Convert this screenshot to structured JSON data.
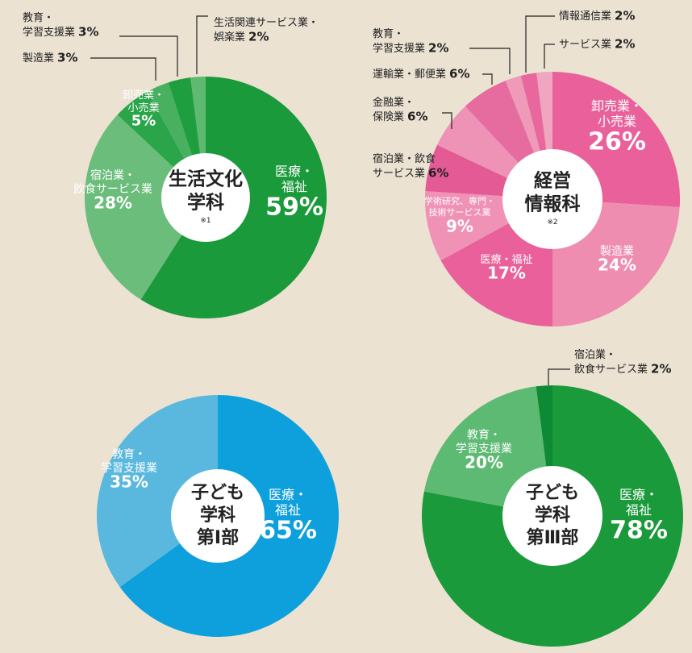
{
  "chart_data": [
    {
      "type": "pie",
      "title": "生活文化\n学科",
      "note": "※1",
      "categories": [
        "医療・\n福祉",
        "宿泊業・\n飲食サービス業",
        "卸売業・\n小売業",
        "製造業",
        "教育・\n学習支援業",
        "生活関連サービス業・\n娯楽業"
      ],
      "values": [
        59,
        28,
        5,
        3,
        3,
        2
      ],
      "value_labels": [
        "59%",
        "28%",
        "5%",
        "3%",
        "3%",
        "2%"
      ],
      "colors": [
        "#1a9a3a",
        "#6abd7a",
        "#2aa54a",
        "#48b05f",
        "#1f9e3f",
        "#5dba70"
      ]
    },
    {
      "type": "pie",
      "title": "経営\n情報科",
      "note": "※2",
      "categories": [
        "卸売業・\n小売業",
        "製造業",
        "医療・福祉",
        "学術研究、専門・\n技術サービス業",
        "宿泊業・飲食\nサービス業",
        "金融業・\n保険業",
        "運輸業・郵便業",
        "教育・\n学習支援業",
        "情報通信業",
        "サービス業"
      ],
      "values": [
        26,
        24,
        17,
        9,
        6,
        6,
        6,
        2,
        2,
        2
      ],
      "value_labels": [
        "26%",
        "24%",
        "17%",
        "9%",
        "6%",
        "6%",
        "6%",
        "2%",
        "2%",
        "2%"
      ],
      "colors": [
        "#e9609a",
        "#ee8db0",
        "#e9609a",
        "#ef92b5",
        "#e45a95",
        "#ee93b5",
        "#e66ca0",
        "#ef9ab9",
        "#e8689d",
        "#f0a5c0"
      ]
    },
    {
      "type": "pie",
      "title": "子ども\n学科\n第Ⅰ部",
      "categories": [
        "医療・\n福祉",
        "教育・\n学習支援業"
      ],
      "values": [
        65,
        35
      ],
      "value_labels": [
        "65%",
        "35%"
      ],
      "colors": [
        "#0ea0dc",
        "#5ab8de"
      ]
    },
    {
      "type": "pie",
      "title": "子ども\n学科\n第Ⅲ部",
      "categories": [
        "医療・\n福祉",
        "教育・\n学習支援業",
        "宿泊業・\n飲食サービス業"
      ],
      "values": [
        78,
        20,
        2
      ],
      "value_labels": [
        "78%",
        "20%",
        "2%"
      ],
      "colors": [
        "#1a9a3a",
        "#5dba72",
        "#0e8a35"
      ]
    }
  ]
}
